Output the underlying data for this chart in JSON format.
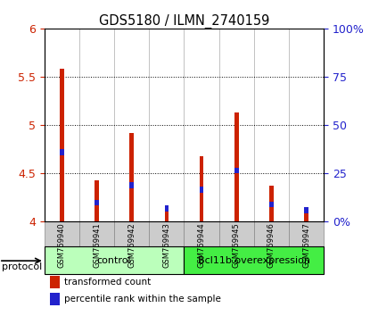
{
  "title": "GDS5180 / ILMN_2740159",
  "samples": [
    "GSM769940",
    "GSM769941",
    "GSM769942",
    "GSM769943",
    "GSM769944",
    "GSM769945",
    "GSM769946",
    "GSM769947"
  ],
  "red_values": [
    5.58,
    4.43,
    4.92,
    4.12,
    4.68,
    5.13,
    4.37,
    4.12
  ],
  "blue_values": [
    4.72,
    4.2,
    4.38,
    4.14,
    4.33,
    4.53,
    4.18,
    4.12
  ],
  "ymin": 4.0,
  "ymax": 6.0,
  "yticks": [
    4.0,
    4.5,
    5.0,
    5.5,
    6.0
  ],
  "right_ytick_vals": [
    0,
    25,
    50,
    75,
    100
  ],
  "right_ytick_labels": [
    "0%",
    "25",
    "50",
    "75",
    "100%"
  ],
  "groups": [
    {
      "label": "control",
      "start": 0,
      "end": 4,
      "color": "#bbffbb"
    },
    {
      "label": "Bcl11b overexpression",
      "start": 4,
      "end": 8,
      "color": "#44ee44"
    }
  ],
  "protocol_label": "protocol",
  "legend_red": "transformed count",
  "legend_blue": "percentile rank within the sample",
  "red_color": "#cc2200",
  "blue_color": "#2222cc",
  "bar_width": 0.12,
  "blue_marker_size": 0.06,
  "plot_bg_color": "#ffffff",
  "sample_cell_color": "#cccccc",
  "group_border_color": "#000000"
}
